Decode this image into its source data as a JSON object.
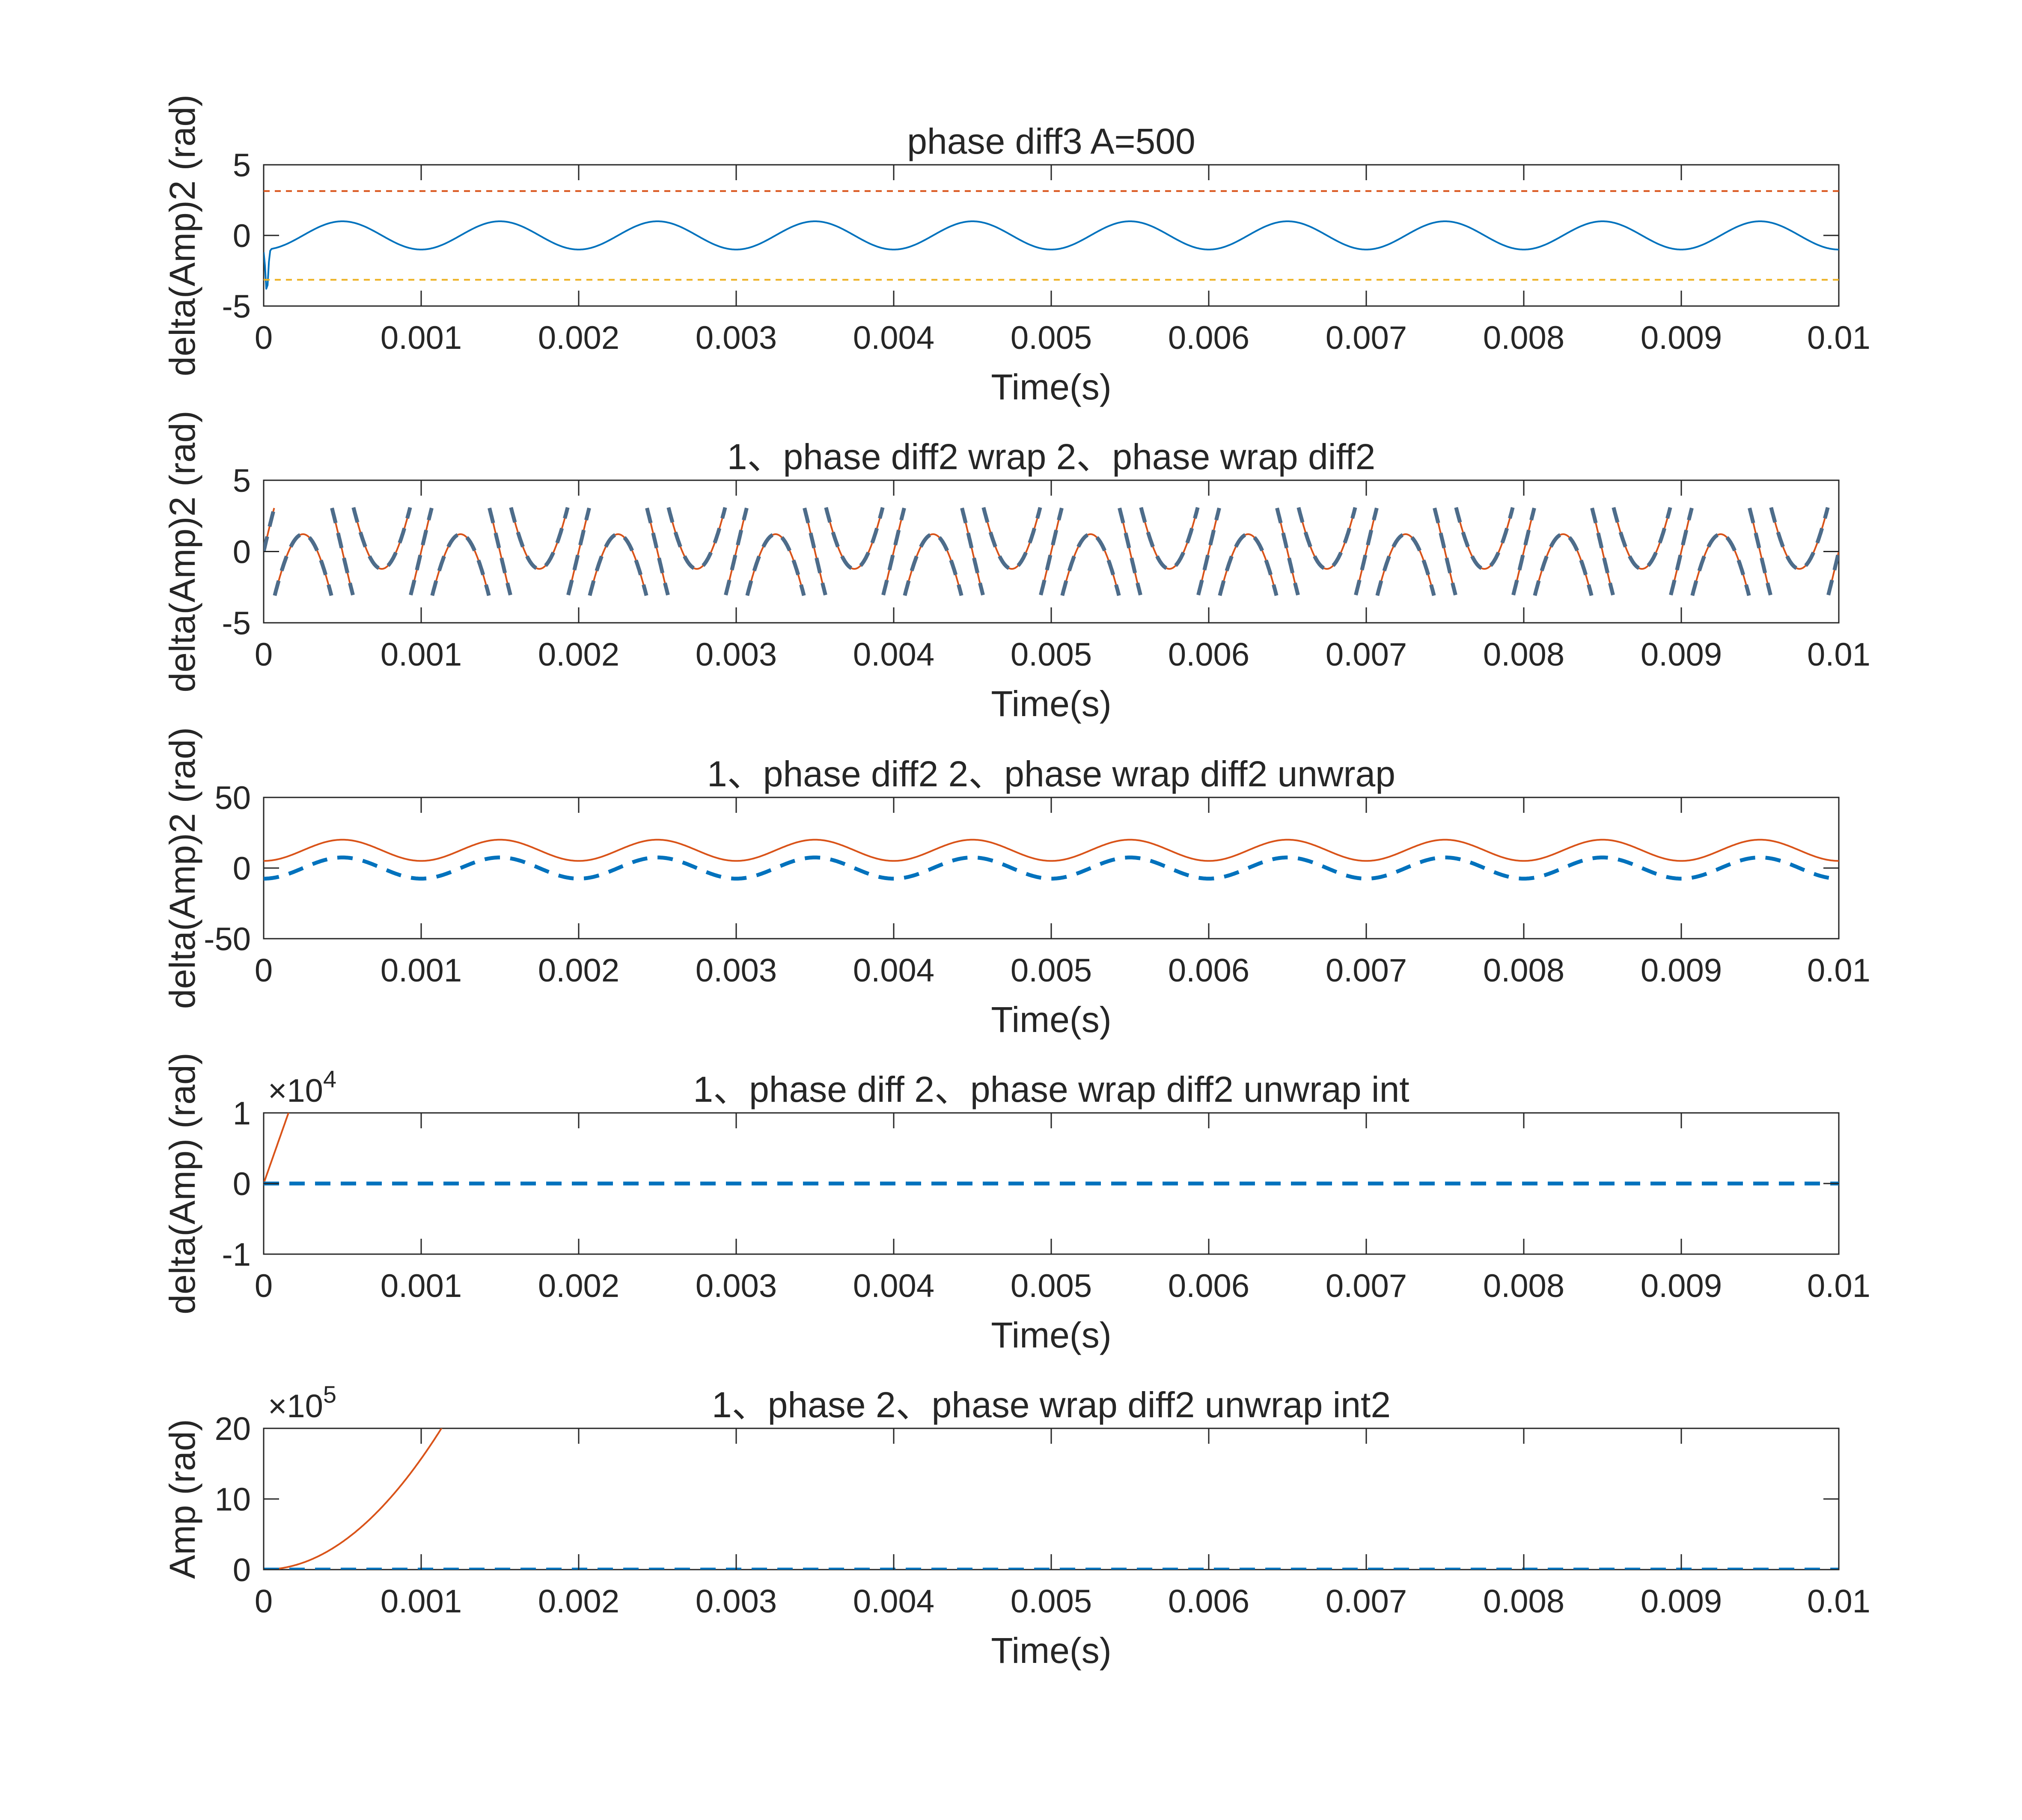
{
  "chart_data": [
    {
      "type": "line",
      "title": "phase diff3 A=500",
      "xlabel": "Time(s)",
      "ylabel": "delta(Amp)2 (rad)",
      "xlim": [
        0,
        0.01
      ],
      "ylim": [
        -5,
        5
      ],
      "xticks": [
        "0",
        "0.001",
        "0.002",
        "0.003",
        "0.004",
        "0.005",
        "0.006",
        "0.007",
        "0.008",
        "0.009",
        "0.01"
      ],
      "yticks": [
        "-5",
        "0",
        "5"
      ],
      "exponent": null,
      "series": [
        {
          "color": "#0072BD",
          "style": "solid",
          "kind": "sine",
          "offset": 0,
          "amp": 1.0,
          "freq": 1000,
          "phase": -1.5708,
          "dip": {
            "x": 2e-05,
            "y": -4.0
          }
        },
        {
          "color": "#D95319",
          "style": "dashed",
          "kind": "const",
          "value": 3.14
        },
        {
          "color": "#EDB120",
          "style": "dashed",
          "kind": "const",
          "value": -3.14
        }
      ]
    },
    {
      "type": "line",
      "title": "1、phase diff2 wrap 2、phase wrap diff2",
      "xlabel": "Time(s)",
      "ylabel": "delta(Amp)2 (rad)",
      "xlim": [
        0,
        0.01
      ],
      "ylim": [
        -5,
        5
      ],
      "xticks": [
        "0",
        "0.001",
        "0.002",
        "0.003",
        "0.004",
        "0.005",
        "0.006",
        "0.007",
        "0.008",
        "0.009",
        "0.01"
      ],
      "yticks": [
        "-5",
        "0",
        "5"
      ],
      "exponent": null,
      "series": [
        {
          "color": "#D95319",
          "style": "solid",
          "kind": "wrapped",
          "offset": 12.566,
          "amp": 7.5,
          "freq": 1000,
          "phase": 0
        },
        {
          "color": "#4D6C8A",
          "style": "dashed",
          "kind": "wrapped",
          "offset": 12.566,
          "amp": 7.5,
          "freq": 1000,
          "phase": 0
        }
      ]
    },
    {
      "type": "line",
      "title": "1、phase diff2 2、phase wrap diff2 unwrap",
      "xlabel": "Time(s)",
      "ylabel": "delta(Amp)2 (rad)",
      "xlim": [
        0,
        0.01
      ],
      "ylim": [
        -50,
        50
      ],
      "xticks": [
        "0",
        "0.001",
        "0.002",
        "0.003",
        "0.004",
        "0.005",
        "0.006",
        "0.007",
        "0.008",
        "0.009",
        "0.01"
      ],
      "yticks": [
        "-50",
        "0",
        "50"
      ],
      "exponent": null,
      "series": [
        {
          "color": "#D95319",
          "style": "solid",
          "kind": "sine",
          "offset": 12.566,
          "amp": 7.5,
          "freq": 1000,
          "phase": -1.5708
        },
        {
          "color": "#0072BD",
          "style": "dashed",
          "kind": "sine",
          "offset": 0,
          "amp": 7.5,
          "freq": 1000,
          "phase": -1.5708
        }
      ]
    },
    {
      "type": "line",
      "title": "1、phase diff  2、phase wrap diff2 unwrap int",
      "xlabel": "Time(s)",
      "ylabel": "delta(Amp) (rad)",
      "xlim": [
        0,
        0.01
      ],
      "ylim": [
        -1,
        1
      ],
      "xticks": [
        "0",
        "0.001",
        "0.002",
        "0.003",
        "0.004",
        "0.005",
        "0.006",
        "0.007",
        "0.008",
        "0.009",
        "0.01"
      ],
      "yticks": [
        "-1",
        "0",
        "1"
      ],
      "exponent": "4",
      "series": [
        {
          "color": "#D95319",
          "style": "solid",
          "kind": "ramp",
          "slope": 62.8,
          "wobble": 0.012,
          "freq": 1000
        },
        {
          "color": "#0072BD",
          "style": "dashed",
          "kind": "const",
          "value": 0.0
        }
      ]
    },
    {
      "type": "line",
      "title": "1、phase 2、phase wrap diff2 unwrap int2",
      "xlabel": "Time(s)",
      "ylabel": "Amp (rad)",
      "xlim": [
        0,
        0.01
      ],
      "ylim": [
        0,
        20
      ],
      "xticks": [
        "0",
        "0.001",
        "0.002",
        "0.003",
        "0.004",
        "0.005",
        "0.006",
        "0.007",
        "0.008",
        "0.009",
        "0.01"
      ],
      "yticks": [
        "0",
        "10",
        "20"
      ],
      "exponent": "5",
      "series": [
        {
          "color": "#D95319",
          "style": "solid",
          "kind": "quad",
          "coef": 157000
        },
        {
          "color": "#0072BD",
          "style": "dashed",
          "kind": "const",
          "value": 0.0
        }
      ]
    }
  ]
}
